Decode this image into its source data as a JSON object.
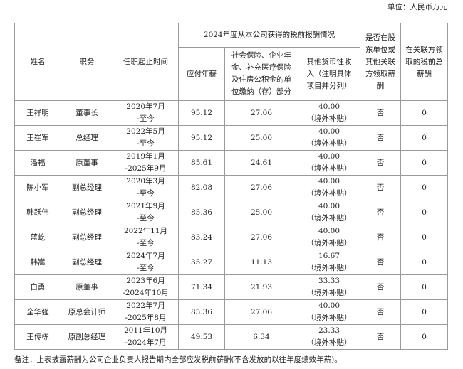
{
  "unit": "单位：人民币万元",
  "headers": {
    "name": "姓名",
    "position": "职务",
    "term": "任职起止时间",
    "group": "2024年度从本公司获得的税前报酬情况",
    "salary": "应付年薪",
    "insurance": "社会保险、企业年金、补充医疗保险及住房公积金的单位缴纳（存）部分",
    "other": "其他货币性收入（注明具体项目并分列）",
    "shareholder": "是否在股东单位或其他关联方领取薪酬",
    "related": "在关联方领取的税前总薪酬"
  },
  "rows": [
    {
      "name": "王祥明",
      "position": "董事长",
      "term_start": "2020年7月",
      "term_end": "-至今",
      "salary": "95.12",
      "insurance": "27.06",
      "other": "40.00",
      "other_note": "（境外补贴）",
      "shareholder": "否",
      "related": "0"
    },
    {
      "name": "王崔军",
      "position": "总经理",
      "term_start": "2022年5月",
      "term_end": "-至今",
      "salary": "95.12",
      "insurance": "25.00",
      "other": "40.00",
      "other_note": "（境外补贴）",
      "shareholder": "否",
      "related": "0"
    },
    {
      "name": "潘福",
      "position": "原董事",
      "term_start": "2019年1月",
      "term_end": "-2025年9月",
      "salary": "85.61",
      "insurance": "24.61",
      "other": "40.00",
      "other_note": "（境外补贴）",
      "shareholder": "否",
      "related": "0"
    },
    {
      "name": "陈小军",
      "position": "副总经理",
      "term_start": "2020年3月",
      "term_end": "-至今",
      "salary": "82.08",
      "insurance": "27.06",
      "other": "40.00",
      "other_note": "（境外补贴）",
      "shareholder": "否",
      "related": "0"
    },
    {
      "name": "韩跃伟",
      "position": "副总经理",
      "term_start": "2021年9月",
      "term_end": "-至今",
      "salary": "85.36",
      "insurance": "25.00",
      "other": "40.00",
      "other_note": "（境外补贴）",
      "shareholder": "否",
      "related": "0"
    },
    {
      "name": "蓝屹",
      "position": "副总经理",
      "term_start": "2022年11月",
      "term_end": "-至今",
      "salary": "83.24",
      "insurance": "27.06",
      "other": "40.00",
      "other_note": "（境外补贴）",
      "shareholder": "否",
      "related": "0"
    },
    {
      "name": "韩嵩",
      "position": "副总经理",
      "term_start": "2024年7月",
      "term_end": "-至今",
      "salary": "35.27",
      "insurance": "11.13",
      "other": "16.67",
      "other_note": "（境外补贴）",
      "shareholder": "否",
      "related": "0"
    },
    {
      "name": "白勇",
      "position": "原董事",
      "term_start": "2023年6月",
      "term_end": "-2024年10月",
      "salary": "71.34",
      "insurance": "21.93",
      "other": "33.33",
      "other_note": "（境外补贴）",
      "shareholder": "否",
      "related": "0"
    },
    {
      "name": "全华强",
      "position": "原总会计师",
      "term_start": "2022年7月",
      "term_end": "-2025年8月",
      "salary": "85.36",
      "insurance": "27.06",
      "other": "40.00",
      "other_note": "（境外补贴）",
      "shareholder": "否",
      "related": "0"
    },
    {
      "name": "王传栋",
      "position": "原副总经理",
      "term_start": "2011年10月",
      "term_end": "-2024年7月",
      "salary": "49.53",
      "insurance": "6.34",
      "other": "23.33",
      "other_note": "（境外补贴）",
      "shareholder": "否",
      "related": "0"
    }
  ],
  "note": "备注：上表披露薪酬为公司企业负责人报告期内全部应发税前薪酬(不含发放的以往年度绩效年薪)。"
}
